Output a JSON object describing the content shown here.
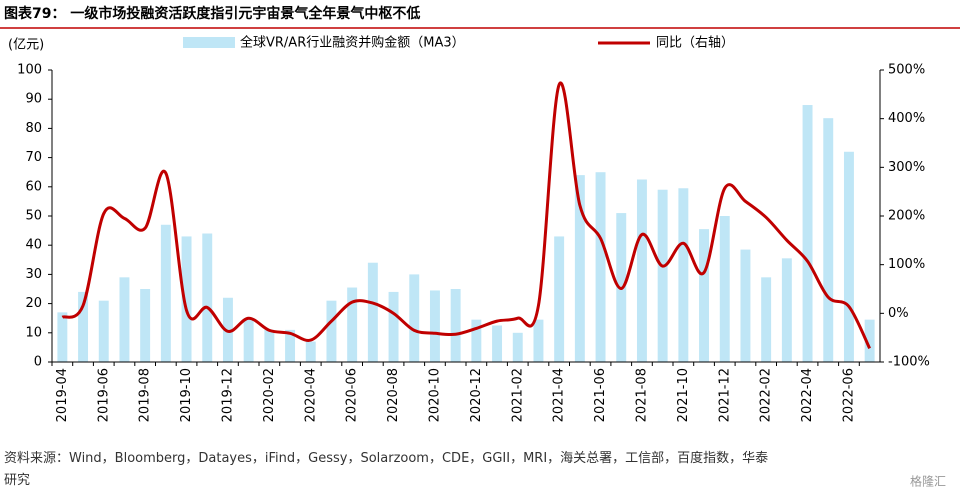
{
  "chart_data": {
    "type": "bar_line",
    "title": "图表79：  一级市场投融资活跃度指引元宇宙景气全年景气中枢不低",
    "y_label": "(亿元)",
    "source": "资料来源：Wind，Bloomberg，Datayes，iFind，Gessy，Solarzoom，CDE，GGII，MRI，海关总署，工信部，百度指数，华泰研究",
    "watermark": "格隆汇",
    "categories": [
      "2019-04",
      null,
      "2019-06",
      null,
      "2019-08",
      null,
      "2019-10",
      null,
      "2019-12",
      null,
      "2020-02",
      null,
      "2020-04",
      null,
      "2020-06",
      null,
      "2020-08",
      null,
      "2020-10",
      null,
      "2020-12",
      null,
      "2021-02",
      null,
      "2021-04",
      null,
      "2021-06",
      null,
      "2021-08",
      null,
      "2021-10",
      null,
      "2021-12",
      null,
      "2022-02",
      null,
      "2022-04",
      null,
      "2022-06",
      null
    ],
    "series": [
      {
        "name": "全球VR/AR行业融资并购金额（MA3）",
        "color": "#bfe6f6",
        "values": [
          17,
          24,
          21,
          29,
          25,
          47,
          43,
          44,
          22,
          15,
          11,
          11,
          7,
          21,
          25.5,
          34,
          24,
          30,
          24.5,
          25,
          14.5,
          12.5,
          10,
          14.5,
          43,
          64,
          65,
          51,
          62.5,
          59,
          59.5,
          45.5,
          50,
          38.5,
          29,
          35.5,
          88,
          83.5,
          72,
          14.5
        ]
      },
      {
        "name": "同比（右轴）",
        "color": "#c00000",
        "axis": "y2",
        "values": [
          -8,
          16,
          205,
          195,
          175,
          288,
          6,
          12,
          -37,
          -10,
          -35,
          -41,
          -55,
          -16,
          23,
          21,
          0,
          -35,
          -41,
          -43,
          -31,
          -16,
          -10,
          16,
          470,
          222,
          154,
          51,
          162,
          97,
          144,
          84,
          257,
          230,
          197,
          150,
          107,
          33,
          14,
          -72
        ]
      }
    ],
    "ylim": [
      0,
      100
    ],
    "yticks": [
      0,
      10,
      20,
      30,
      40,
      50,
      60,
      70,
      80,
      90,
      100
    ],
    "y2lim": [
      -100,
      500
    ],
    "y2ticks": [
      {
        "value": -100,
        "label": "-100%"
      },
      {
        "value": 0,
        "label": "0%"
      },
      {
        "value": 100,
        "label": "100%"
      },
      {
        "value": 200,
        "label": "200%"
      },
      {
        "value": 300,
        "label": "300%"
      },
      {
        "value": 400,
        "label": "400%"
      },
      {
        "value": 500,
        "label": "500%"
      }
    ],
    "grid": false
  }
}
